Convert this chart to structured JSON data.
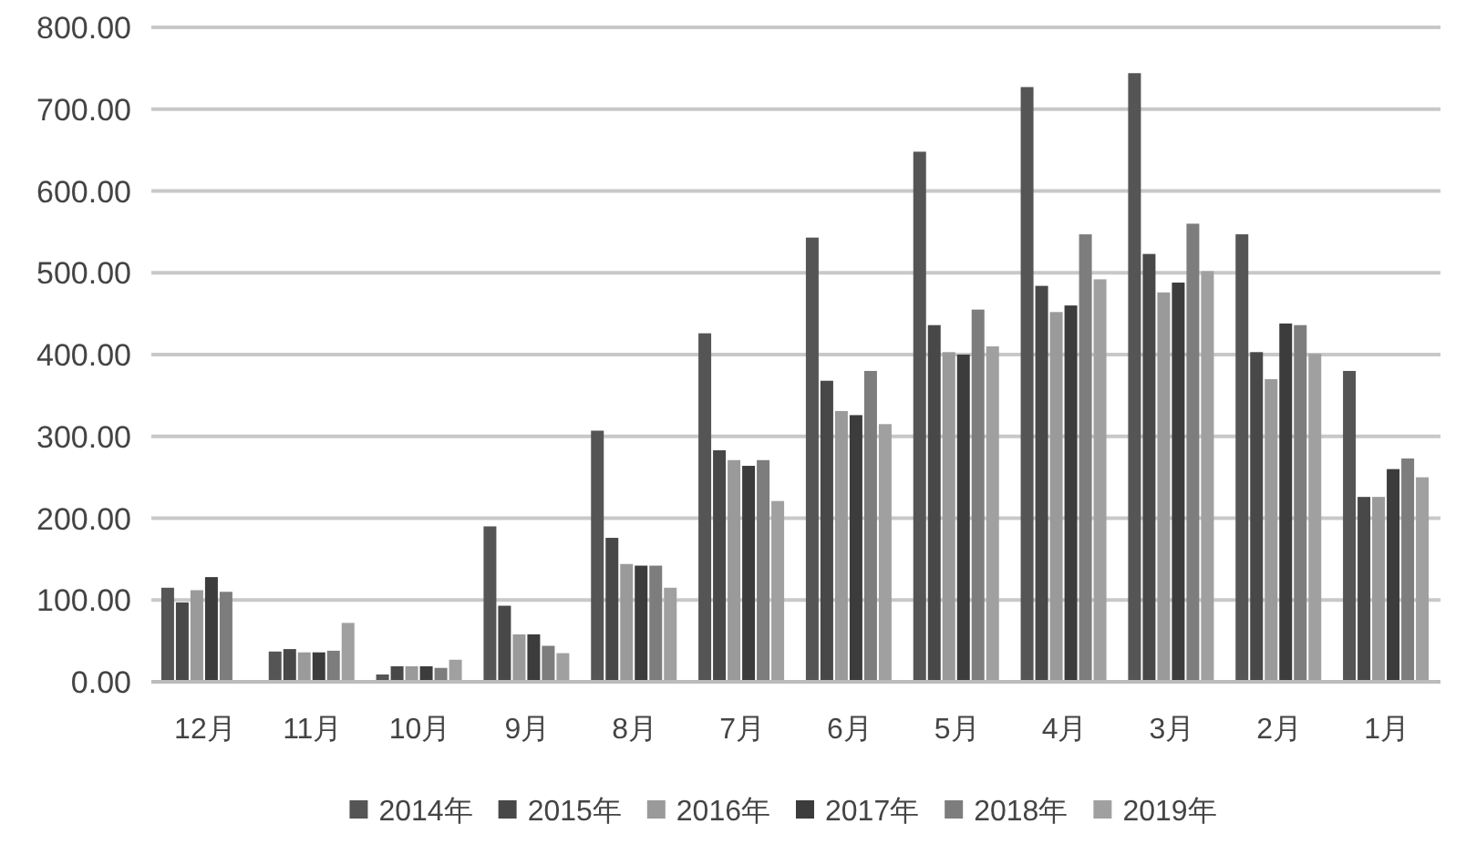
{
  "chart_data": {
    "type": "bar",
    "categories": [
      "12月",
      "11月",
      "10月",
      "9月",
      "8月",
      "7月",
      "6月",
      "5月",
      "4月",
      "3月",
      "2月",
      "1月"
    ],
    "series": [
      {
        "name": "2014年",
        "color": "#555555",
        "values": [
          115,
          37,
          9,
          190,
          307,
          426,
          543,
          648,
          727,
          744,
          547,
          380
        ]
      },
      {
        "name": "2015年",
        "color": "#484848",
        "values": [
          97,
          40,
          19,
          93,
          176,
          283,
          368,
          436,
          484,
          523,
          403,
          226
        ]
      },
      {
        "name": "2016年",
        "color": "#9a9a9a",
        "values": [
          112,
          36,
          19,
          58,
          144,
          271,
          331,
          403,
          452,
          476,
          370,
          226
        ]
      },
      {
        "name": "2017年",
        "color": "#3c3c3c",
        "values": [
          128,
          36,
          19,
          58,
          142,
          264,
          326,
          400,
          460,
          488,
          438,
          260
        ]
      },
      {
        "name": "2018年",
        "color": "#7d7d7d",
        "values": [
          110,
          38,
          17,
          44,
          142,
          271,
          380,
          455,
          547,
          560,
          436,
          273
        ]
      },
      {
        "name": "2019年",
        "color": "#a0a0a0",
        "values": [
          null,
          72,
          27,
          35,
          115,
          221,
          315,
          410,
          492,
          502,
          401,
          250
        ]
      }
    ],
    "ylim": [
      0,
      800
    ],
    "yticks": [
      {
        "value": 0,
        "label": "0.00"
      },
      {
        "value": 100,
        "label": "100.00"
      },
      {
        "value": 200,
        "label": "200.00"
      },
      {
        "value": 300,
        "label": "300.00"
      },
      {
        "value": 400,
        "label": "400.00"
      },
      {
        "value": 500,
        "label": "500.00"
      },
      {
        "value": 600,
        "label": "600.00"
      },
      {
        "value": 700,
        "label": "700.00"
      },
      {
        "value": 800,
        "label": "800.00"
      }
    ],
    "grid": "y",
    "legend": "bottom"
  }
}
